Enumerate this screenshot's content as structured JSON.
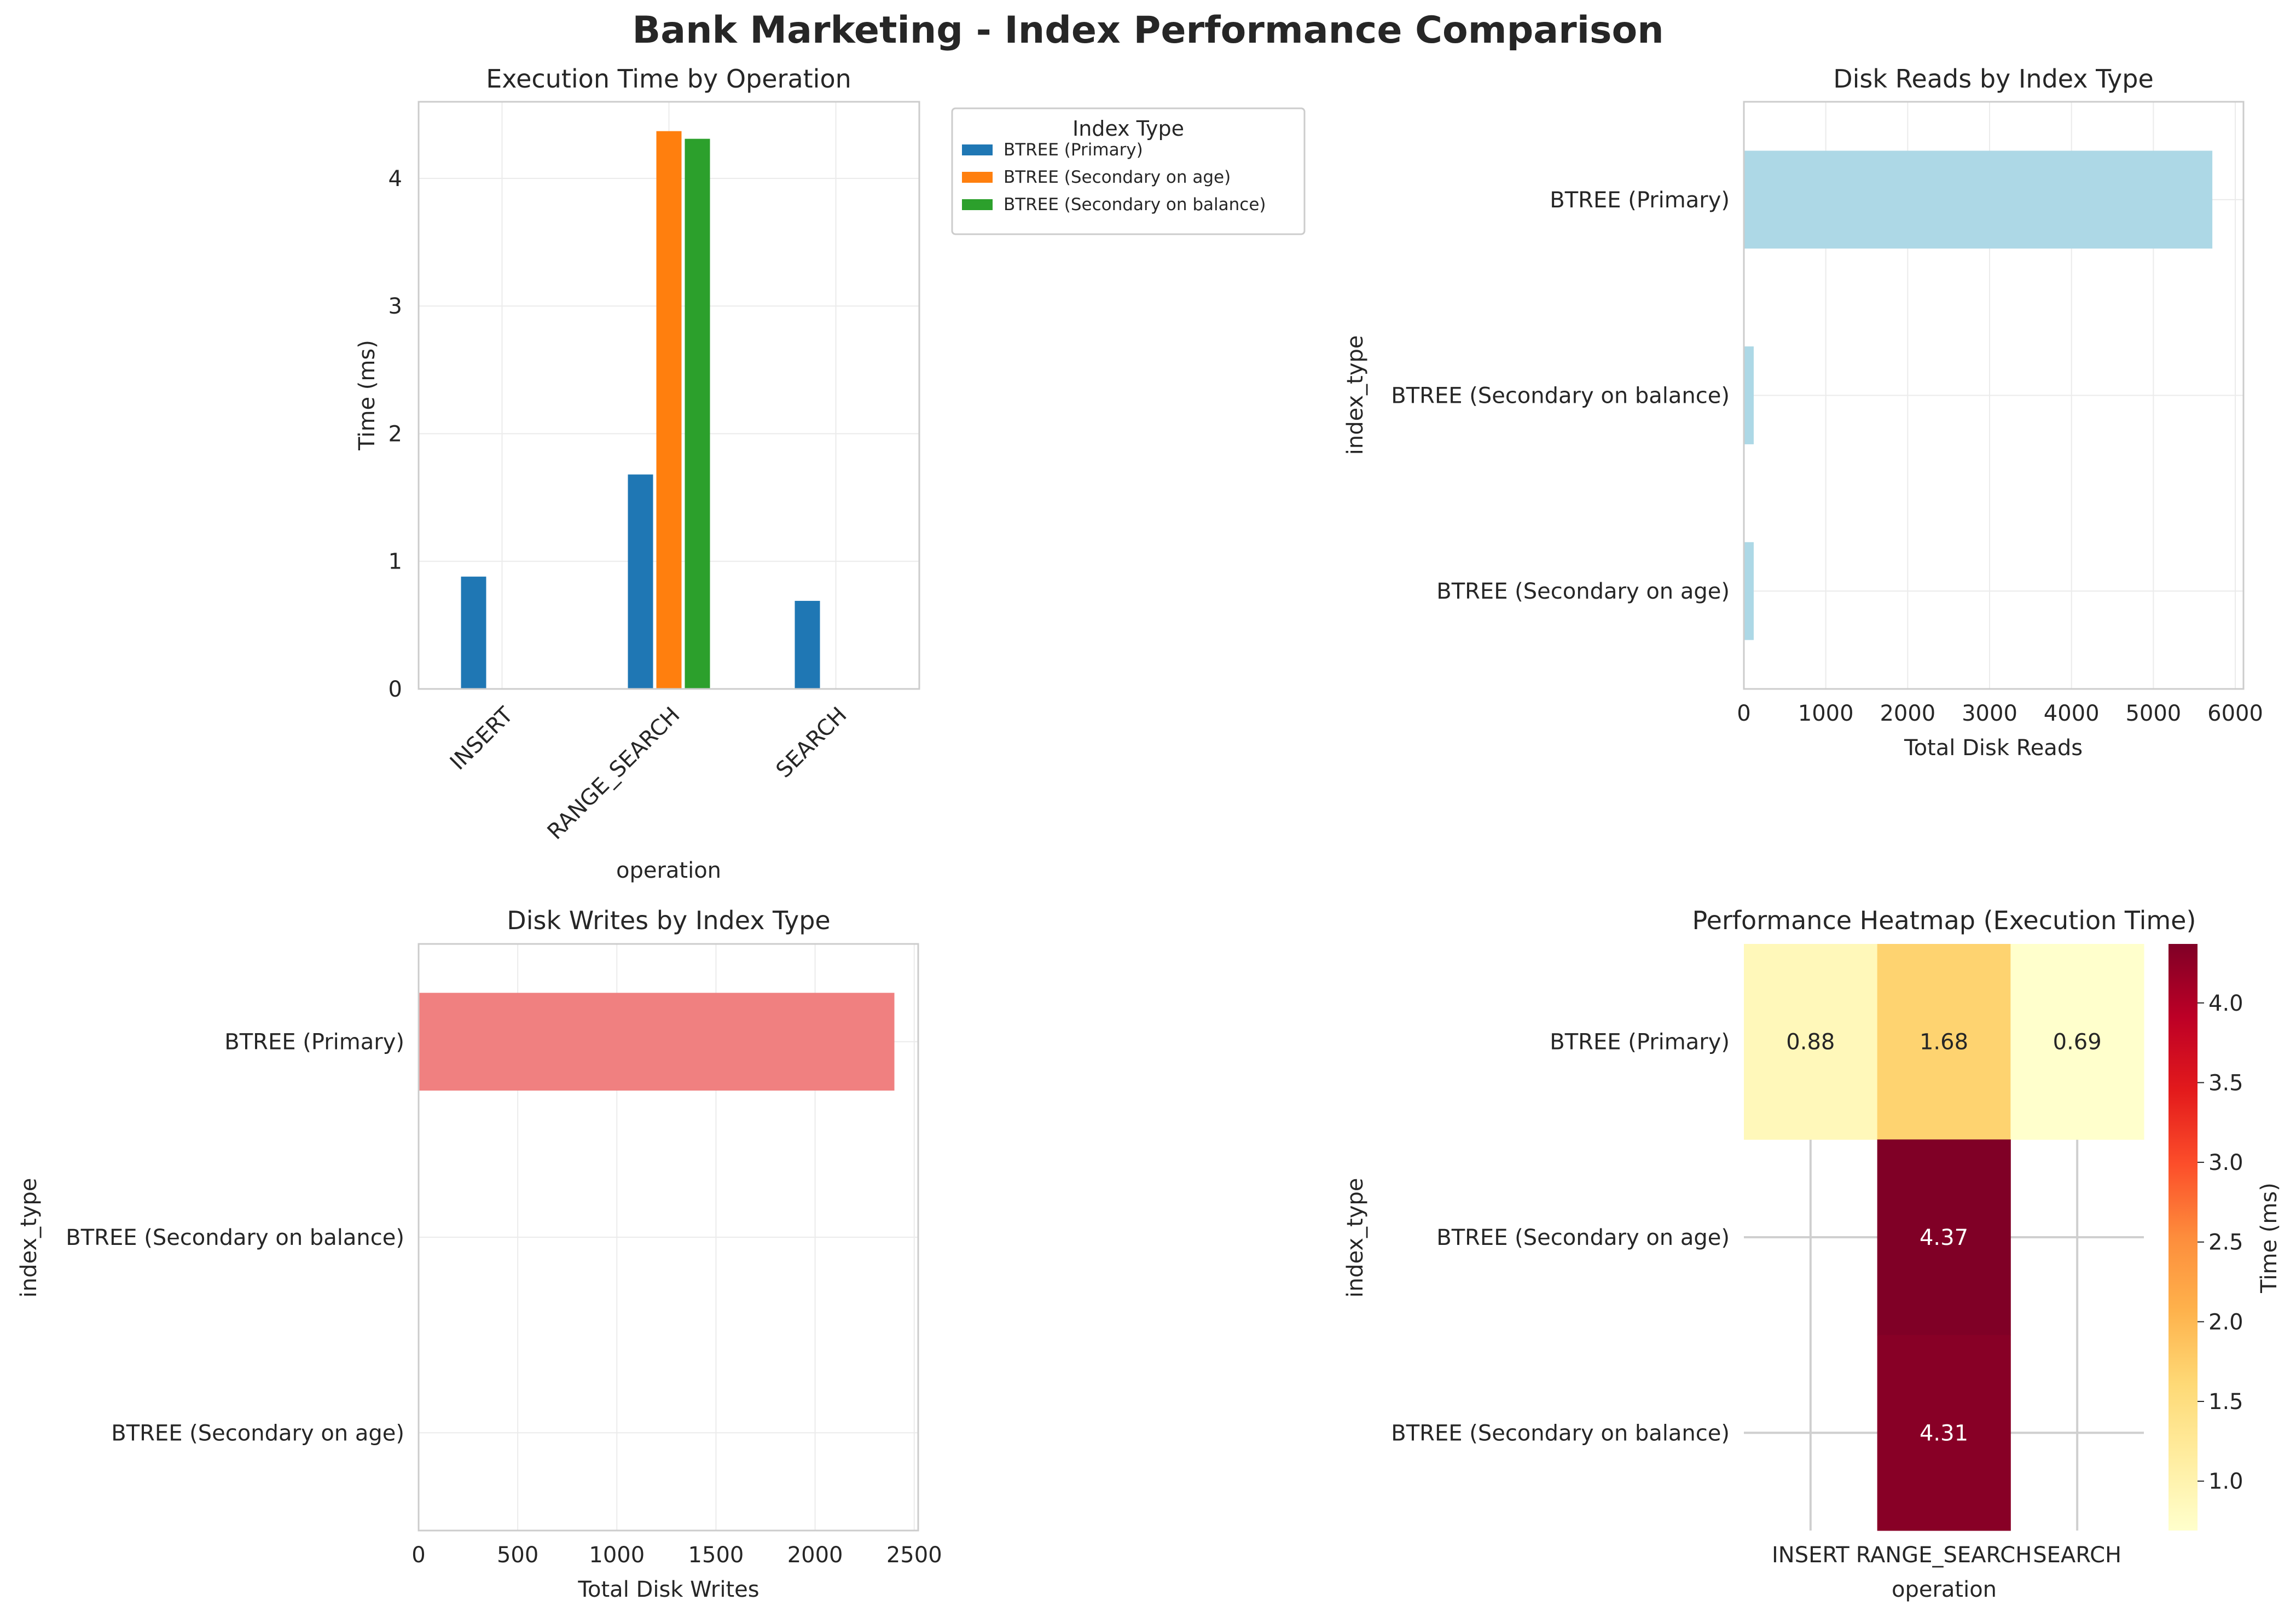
{
  "figure": {
    "title": "Bank Marketing - Index Performance Comparison"
  },
  "chart_data": [
    {
      "id": "exec",
      "type": "bar",
      "title": "Execution Time by Operation",
      "xlabel": "operation",
      "ylabel": "Time (ms)",
      "categories": [
        "INSERT",
        "RANGE_SEARCH",
        "SEARCH"
      ],
      "ylim": [
        0,
        4.6
      ],
      "yticks": [
        "0",
        "1",
        "2",
        "3",
        "4"
      ],
      "grid": true,
      "legend": {
        "title": "Index Type",
        "placement": "outside upper right"
      },
      "series": [
        {
          "name": "BTREE (Primary)",
          "color": "#1f77b4",
          "values": [
            0.88,
            1.68,
            0.69
          ]
        },
        {
          "name": "BTREE (Secondary on age)",
          "color": "#ff7f0e",
          "values": [
            null,
            4.37,
            null
          ]
        },
        {
          "name": "BTREE (Secondary on balance)",
          "color": "#2ca02c",
          "values": [
            null,
            4.31,
            null
          ]
        }
      ]
    },
    {
      "id": "reads",
      "type": "bar",
      "orientation": "horizontal",
      "title": "Disk Reads by Index Type",
      "xlabel": "Total Disk Reads",
      "ylabel": "index_type",
      "categories": [
        "BTREE (Primary)",
        "BTREE (Secondary on balance)",
        "BTREE (Secondary on age)"
      ],
      "values": [
        5720,
        120,
        120
      ],
      "color": "#add8e6",
      "xlim": [
        0,
        6100
      ],
      "xticks": [
        "0",
        "1000",
        "2000",
        "3000",
        "4000",
        "5000",
        "6000"
      ],
      "grid": true
    },
    {
      "id": "writes",
      "type": "bar",
      "orientation": "horizontal",
      "title": "Disk Writes by Index Type",
      "xlabel": "Total Disk Writes",
      "ylabel": "index_type",
      "categories": [
        "BTREE (Primary)",
        "BTREE (Secondary on balance)",
        "BTREE (Secondary on age)"
      ],
      "values": [
        2400,
        0,
        0
      ],
      "color": "#f08080",
      "xlim": [
        0,
        2520
      ],
      "xticks": [
        "0",
        "500",
        "1000",
        "1500",
        "2000",
        "2500"
      ],
      "grid": true
    },
    {
      "id": "heat",
      "type": "heatmap",
      "title": "Performance Heatmap (Execution Time)",
      "xlabel": "operation",
      "ylabel": "index_type",
      "colorbar_label": "Time (ms)",
      "columns": [
        "INSERT",
        "RANGE_SEARCH",
        "SEARCH"
      ],
      "rows": [
        "BTREE (Primary)",
        "BTREE (Secondary on age)",
        "BTREE (Secondary on balance)"
      ],
      "values": [
        [
          0.88,
          1.68,
          0.69
        ],
        [
          null,
          4.37,
          null
        ],
        [
          null,
          4.31,
          null
        ]
      ],
      "labels": [
        [
          "0.88",
          "1.68",
          "0.69"
        ],
        [
          "",
          "4.37",
          ""
        ],
        [
          "",
          "4.31",
          ""
        ]
      ],
      "vmin": 0.69,
      "vmax": 4.37,
      "colormap": "YlOrRd",
      "colorbar_ticks": [
        "1.0",
        "1.5",
        "2.0",
        "2.5",
        "3.0",
        "3.5",
        "4.0"
      ]
    }
  ]
}
